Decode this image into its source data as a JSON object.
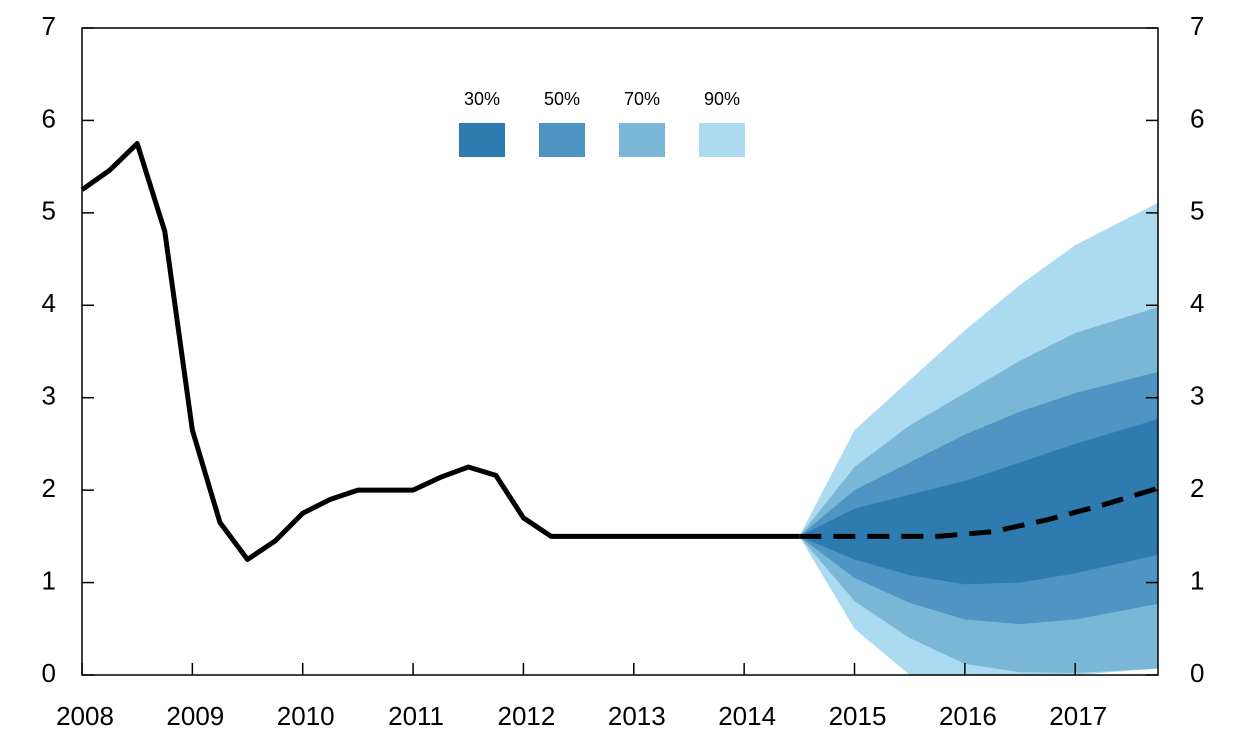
{
  "chart_data": {
    "type": "fan",
    "xlim": [
      2008,
      2017.75
    ],
    "xticks": [
      2008,
      2009,
      2010,
      2011,
      2012,
      2013,
      2014,
      2015,
      2016,
      2017
    ],
    "ylim": [
      0,
      7
    ],
    "yticks": [
      0,
      1,
      2,
      3,
      4,
      5,
      6,
      7
    ],
    "y2lim": [
      0,
      7
    ],
    "y2ticks": [
      0,
      1,
      2,
      3,
      4,
      5,
      6,
      7
    ],
    "bands": {
      "x": [
        2014.5,
        2015,
        2015.5,
        2016,
        2016.5,
        2017,
        2017.75
      ],
      "series": [
        {
          "name": "90%",
          "color": "#acdaf0",
          "upper": [
            1.5,
            2.65,
            3.19,
            3.73,
            4.22,
            4.65,
            5.11
          ],
          "lower": [
            1.5,
            0.5,
            0,
            0,
            0,
            0,
            0.07
          ]
        },
        {
          "name": "70%",
          "color": "#7ab7d6",
          "upper": [
            1.5,
            2.25,
            2.7,
            3.05,
            3.4,
            3.7,
            3.98
          ],
          "lower": [
            1.5,
            0.8,
            0.4,
            0.12,
            0.03,
            0.02,
            0.07
          ]
        },
        {
          "name": "50%",
          "color": "#4f95c4",
          "upper": [
            1.5,
            2.0,
            2.3,
            2.6,
            2.85,
            3.05,
            3.28
          ],
          "lower": [
            1.5,
            1.05,
            0.78,
            0.6,
            0.55,
            0.6,
            0.77
          ]
        },
        {
          "name": "30%",
          "color": "#2e7bb0",
          "upper": [
            1.5,
            1.8,
            1.95,
            2.1,
            2.3,
            2.5,
            2.77
          ],
          "lower": [
            1.5,
            1.25,
            1.08,
            0.98,
            1.0,
            1.1,
            1.3
          ]
        }
      ]
    },
    "lines": [
      {
        "color": "#000000",
        "dash": false,
        "x": [
          2008,
          2008.25,
          2008.5,
          2008.75,
          2009,
          2009.25,
          2009.5,
          2009.75,
          2010,
          2010.25,
          2010.5,
          2010.75,
          2011,
          2011.25,
          2011.5,
          2011.75,
          2012,
          2012.25,
          2012.5,
          2012.75,
          2013,
          2013.25,
          2013.5,
          2013.75,
          2014,
          2014.25,
          2014.5
        ],
        "values": [
          5.25,
          5.46,
          5.75,
          4.8,
          2.65,
          1.65,
          1.25,
          1.45,
          1.75,
          1.9,
          2.0,
          2.0,
          2.0,
          2.14,
          2.25,
          2.16,
          1.7,
          1.5,
          1.5,
          1.5,
          1.5,
          1.5,
          1.5,
          1.5,
          1.5,
          1.5,
          1.5
        ]
      },
      {
        "color": "#000000",
        "dash": true,
        "x": [
          2014.5,
          2015,
          2015.75,
          2016.25,
          2016.75,
          2017.25,
          2017.75
        ],
        "values": [
          1.5,
          1.5,
          1.5,
          1.55,
          1.68,
          1.84,
          2.02
        ]
      }
    ]
  }
}
